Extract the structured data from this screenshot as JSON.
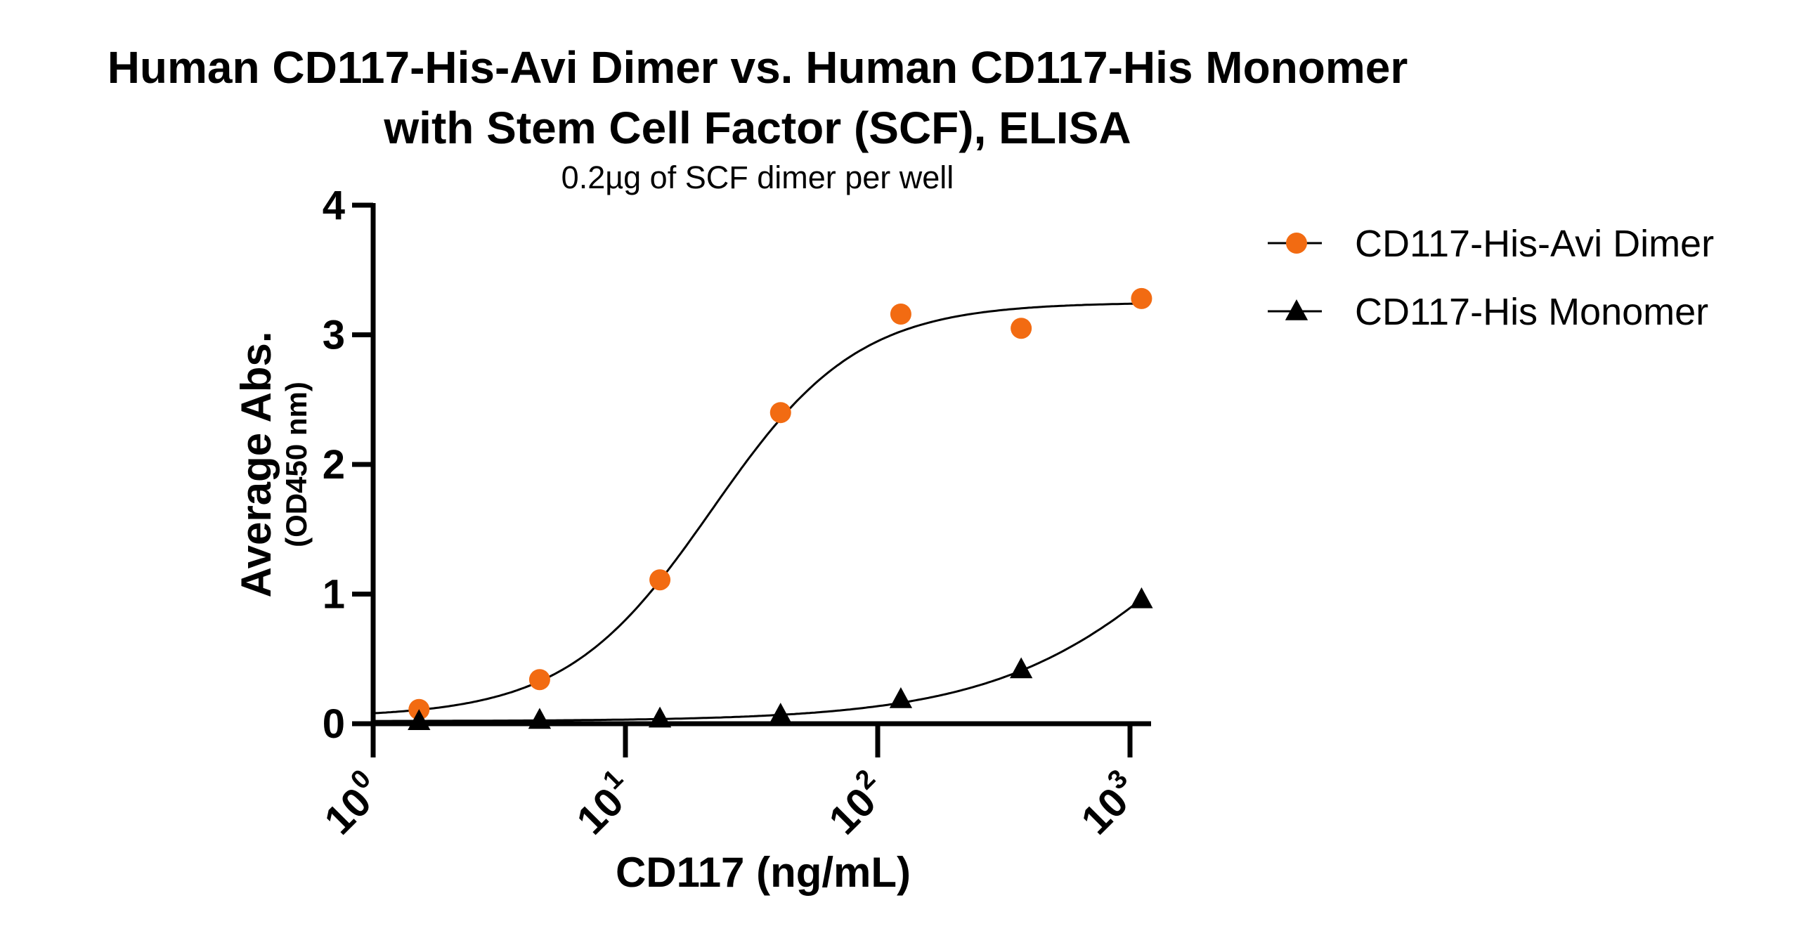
{
  "chart_data": {
    "type": "scatter",
    "title": [
      "Human CD117-His-Avi Dimer vs. Human CD117-His Monomer",
      "with Stem Cell Factor (SCF), ELISA"
    ],
    "subtitle": "0.2µg of SCF dimer per well",
    "xlabel": "CD117 (ng/mL)",
    "ylabel": "Average Abs.",
    "ylabel_sub": "(OD450 nm)",
    "xscale": "log",
    "xlim": [
      1,
      1350
    ],
    "ylim": [
      0,
      4
    ],
    "xticks": [
      {
        "base": "10",
        "exp": "0",
        "value": 1
      },
      {
        "base": "10",
        "exp": "1",
        "value": 10
      },
      {
        "base": "10",
        "exp": "2",
        "value": 100
      },
      {
        "base": "10",
        "exp": "3",
        "value": 1000
      }
    ],
    "yticks": [
      "0",
      "1",
      "2",
      "3",
      "4"
    ],
    "grid": false,
    "legend_position": "right",
    "series": [
      {
        "name": "CD117-His-Avi Dimer",
        "marker": "circle",
        "color": "#F26B12",
        "fit_curve": true,
        "x": [
          1.52,
          4.57,
          13.7,
          41.2,
          123.5,
          370.4,
          1111.1
        ],
        "y": [
          0.11,
          0.34,
          1.11,
          2.4,
          3.16,
          3.05,
          3.28
        ]
      },
      {
        "name": "CD117-His Monomer",
        "marker": "triangle",
        "color": "#000000",
        "fit_curve": true,
        "x": [
          1.52,
          4.57,
          13.7,
          41.2,
          123.5,
          370.4,
          1111.1
        ],
        "y": [
          0.02,
          0.03,
          0.04,
          0.07,
          0.19,
          0.42,
          0.96
        ]
      }
    ]
  }
}
